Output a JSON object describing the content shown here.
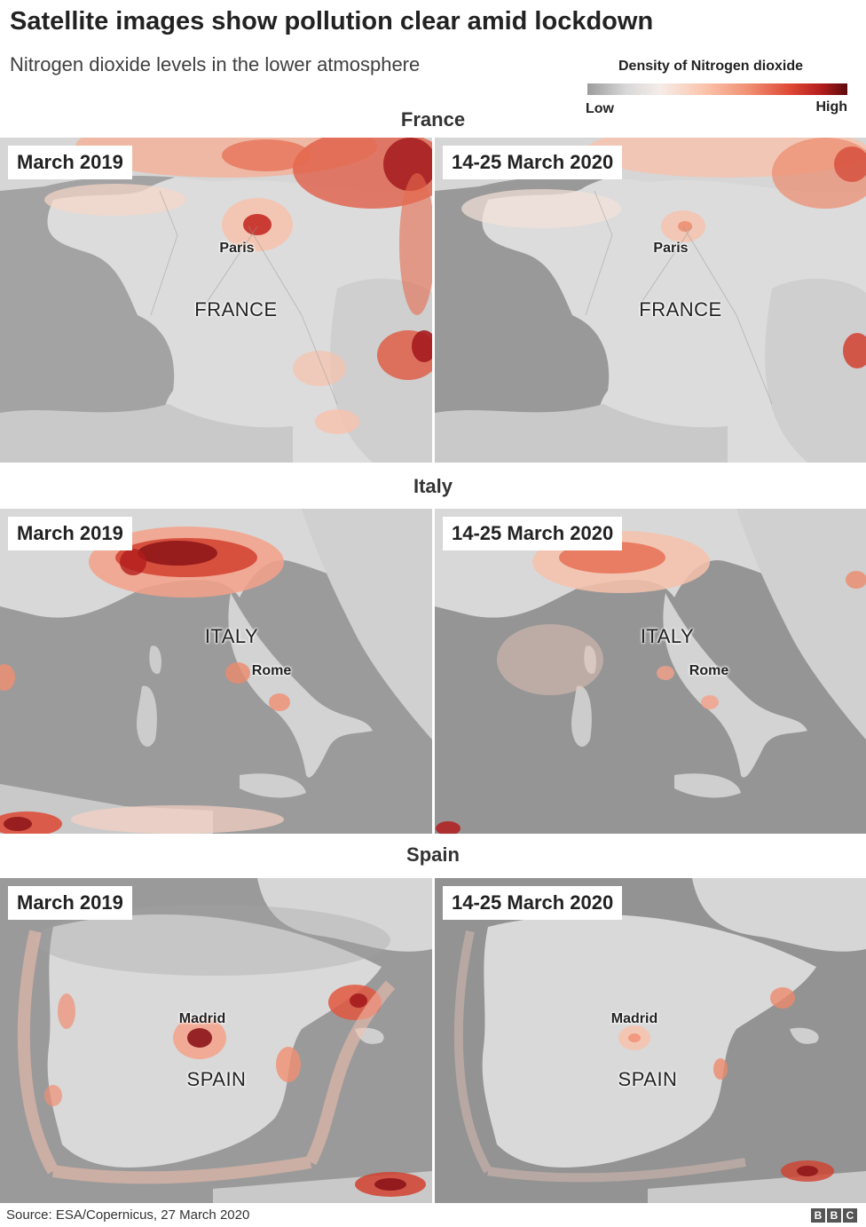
{
  "header": {
    "title": "Satellite images show pollution clear amid lockdown",
    "subtitle": "Nitrogen dioxide levels in the lower atmosphere"
  },
  "legend": {
    "title": "Density of Nitrogen dioxide",
    "low_label": "Low",
    "high_label": "High",
    "colors": [
      "#9c9c9c",
      "#d8d8d8",
      "#f5ece8",
      "#fbc4ac",
      "#f08f72",
      "#de4835",
      "#b31d1d",
      "#5c0b0e"
    ]
  },
  "sections": [
    {
      "heading": "France",
      "country": "FRANCE",
      "panels": [
        {
          "date": "March 2019",
          "city": "Paris",
          "country": "FRANCE"
        },
        {
          "date": "14-25 March 2020",
          "city": "Paris",
          "country": "FRANCE"
        }
      ]
    },
    {
      "heading": "Italy",
      "country": "ITALY",
      "panels": [
        {
          "date": "March 2019",
          "city": "Rome",
          "country": "ITALY"
        },
        {
          "date": "14-25 March 2020",
          "city": "Rome",
          "country": "ITALY"
        }
      ]
    },
    {
      "heading": "Spain",
      "country": "SPAIN",
      "panels": [
        {
          "date": "March 2019",
          "city": "Madrid",
          "country": "SPAIN"
        },
        {
          "date": "14-25 March 2020",
          "city": "Madrid",
          "country": "SPAIN"
        }
      ]
    }
  ],
  "footer": {
    "source": "Source: ESA/Copernicus, 27 March 2020",
    "logo_letters": [
      "B",
      "B",
      "C"
    ]
  }
}
